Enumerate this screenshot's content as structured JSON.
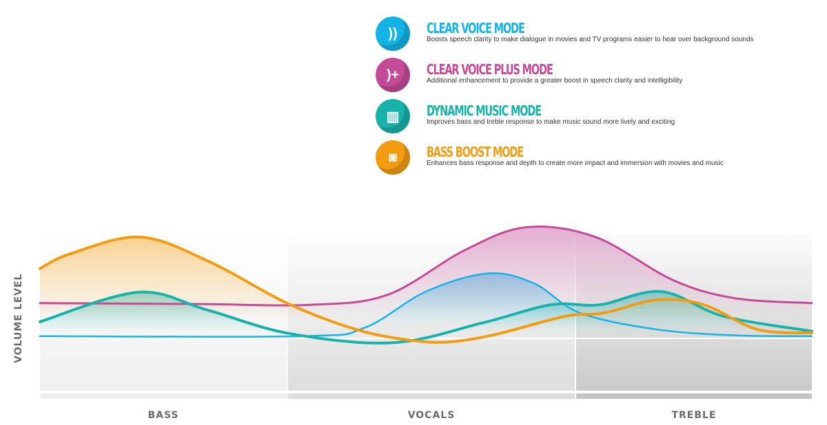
{
  "modes": [
    {
      "title": "CLEAR VOICE MODE",
      "desc": "Boosts speech clarity to make dialogue in movies and TV programs easier to hear over background sounds",
      "color": "#13b3e6",
      "icon": "speaking-head-icon",
      "glyph": "))"
    },
    {
      "title": "CLEAR VOICE PLUS MODE",
      "desc": "Additional enhancement to provide a greater boost in speech clarity and intelligibility",
      "color": "#c44a98",
      "icon": "speaking-head-plus-icon",
      "glyph": ")+"
    },
    {
      "title": "DYNAMIC MUSIC MODE",
      "desc": "Improves bass and treble response to make music sound more lively and exciting",
      "color": "#18b2ab",
      "icon": "concert-stage-icon",
      "glyph": "▥"
    },
    {
      "title": "BASS BOOST MODE",
      "desc": "Enhances bass response and depth to create more impact and immersion with movies and music",
      "color": "#f39c12",
      "icon": "subwoofer-icon",
      "glyph": "◙"
    }
  ],
  "chart_data": {
    "type": "line",
    "ylabel": "VOLUME LEVEL",
    "categories": [
      "BASS",
      "VOCALS",
      "TREBLE"
    ],
    "xlim": [
      0,
      100
    ],
    "ylim": [
      0,
      100
    ],
    "baseline": 31,
    "series": [
      {
        "name": "CLEAR VOICE MODE",
        "color": "#13b3e6",
        "points": [
          [
            0,
            33
          ],
          [
            34,
            33
          ],
          [
            42,
            38
          ],
          [
            50,
            60
          ],
          [
            58,
            71
          ],
          [
            64,
            65
          ],
          [
            70,
            47
          ],
          [
            80,
            37
          ],
          [
            90,
            33.5
          ],
          [
            100,
            33
          ]
        ]
      },
      {
        "name": "CLEAR VOICE PLUS MODE",
        "color": "#c44a98",
        "points": [
          [
            0,
            53
          ],
          [
            20,
            52.5
          ],
          [
            35,
            52
          ],
          [
            45,
            58
          ],
          [
            55,
            85
          ],
          [
            63,
            99
          ],
          [
            72,
            93
          ],
          [
            82,
            67
          ],
          [
            90,
            56
          ],
          [
            100,
            53
          ]
        ]
      },
      {
        "name": "DYNAMIC MUSIC MODE",
        "color": "#18b2ab",
        "points": [
          [
            0,
            41.7
          ],
          [
            12.7,
            59.6
          ],
          [
            21.6,
            49
          ],
          [
            32.3,
            34.6
          ],
          [
            45.7,
            29
          ],
          [
            57.3,
            41
          ],
          [
            66.2,
            52
          ],
          [
            72.5,
            52
          ],
          [
            80.5,
            60
          ],
          [
            88.6,
            45
          ],
          [
            100,
            36
          ]
        ]
      },
      {
        "name": "BASS BOOST MODE",
        "color": "#f39c12",
        "points": [
          [
            0,
            74
          ],
          [
            4,
            83
          ],
          [
            13,
            93
          ],
          [
            22,
            78
          ],
          [
            32,
            53
          ],
          [
            41,
            37
          ],
          [
            48,
            30.5
          ],
          [
            53,
            29.5
          ],
          [
            59,
            34
          ],
          [
            68,
            45
          ],
          [
            73,
            47
          ],
          [
            80,
            55
          ],
          [
            86,
            52
          ],
          [
            93,
            37
          ],
          [
            100,
            35
          ]
        ]
      }
    ]
  }
}
